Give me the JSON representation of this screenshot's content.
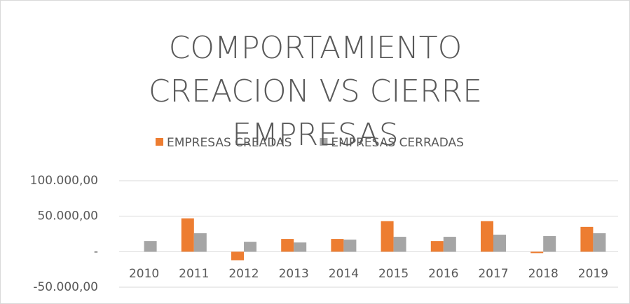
{
  "chart_data": {
    "type": "bar",
    "title": "COMPORTAMIENTO CREACION VS CIERRE EMPRESAS",
    "categories": [
      "2010",
      "2011",
      "2012",
      "2013",
      "2014",
      "2015",
      "2016",
      "2017",
      "2018",
      "2019"
    ],
    "series": [
      {
        "name": "EMPRESAS CREADAS",
        "color": "#ed7d31",
        "values": [
          0,
          47000,
          -12000,
          18000,
          18000,
          43000,
          15000,
          43000,
          -2000,
          35000
        ]
      },
      {
        "name": "EMPRESAS CERRADAS",
        "color": "#a5a5a5",
        "values": [
          15000,
          26000,
          14000,
          13000,
          17000,
          21000,
          21000,
          24000,
          22000,
          26000
        ]
      }
    ],
    "ylim": [
      -50000,
      100000
    ],
    "yticks": [
      {
        "value": -50000,
        "label": "-50.000,00"
      },
      {
        "value": 0,
        "label": "-"
      },
      {
        "value": 50000,
        "label": "50.000,00"
      },
      {
        "value": 100000,
        "label": "100.000,00"
      }
    ],
    "grid": true,
    "legend": "top"
  }
}
